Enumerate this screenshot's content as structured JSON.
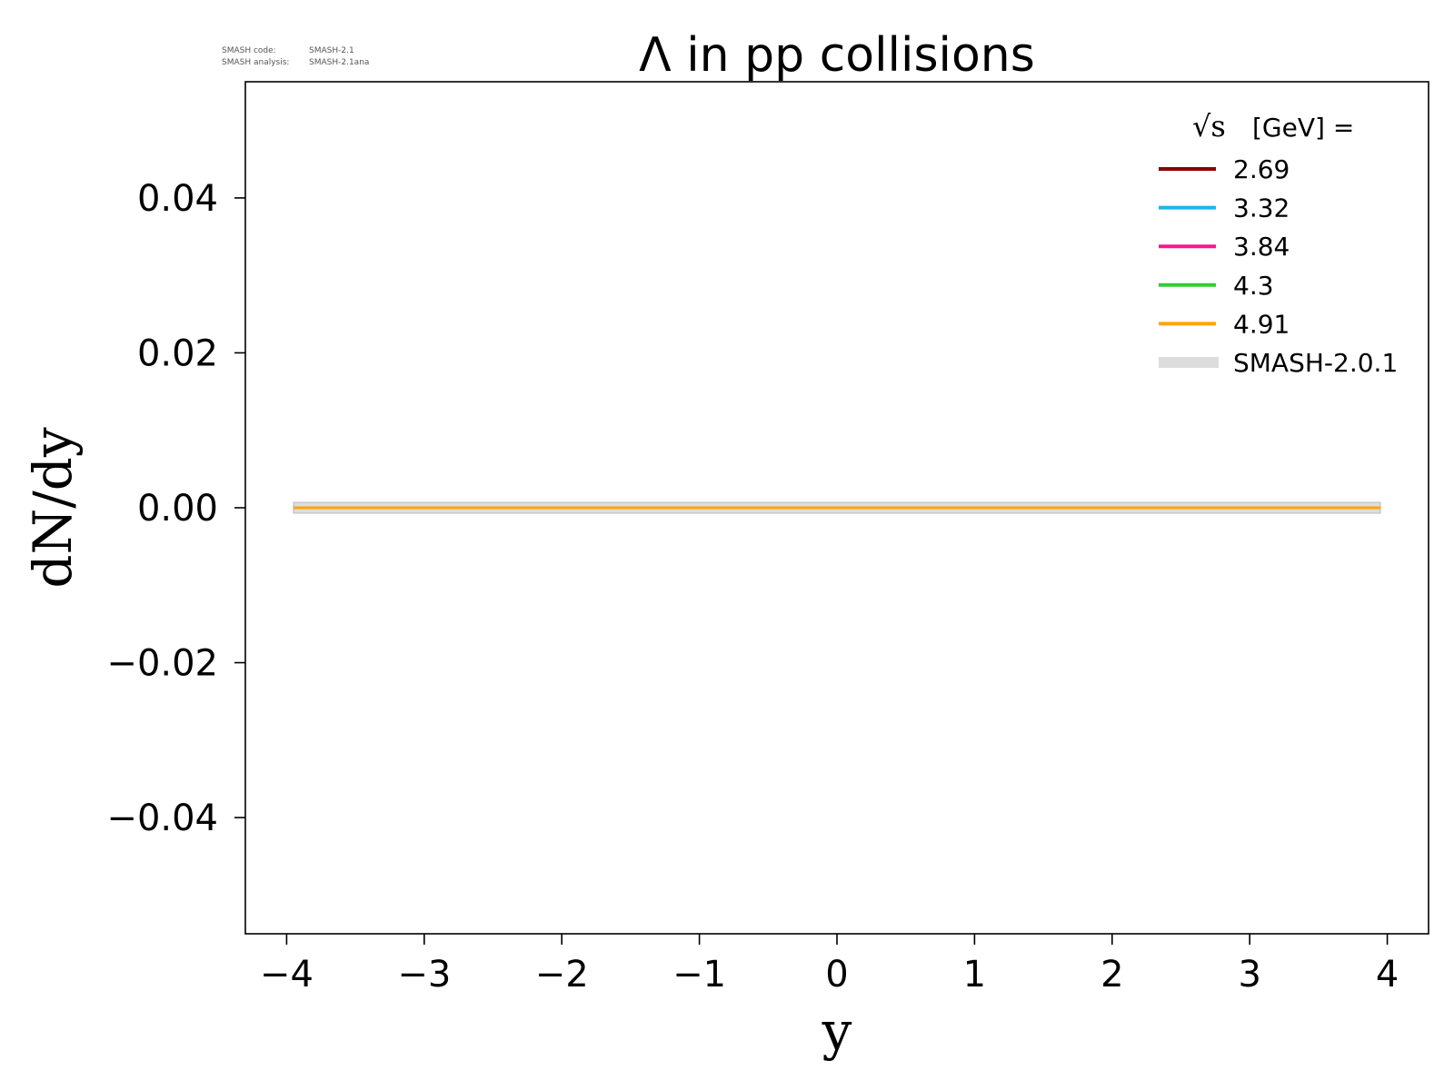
{
  "meta": {
    "code_label": "SMASH code:",
    "code_value": "SMASH-2.1",
    "analysis_label": "SMASH analysis:",
    "analysis_value": "SMASH-2.1ana"
  },
  "chart_data": {
    "type": "line",
    "title": "Λ in pp collisions",
    "xlabel": "y",
    "ylabel": "dN/dy",
    "xlim": [
      -4.3,
      4.3
    ],
    "ylim": [
      -0.055,
      0.055
    ],
    "xticks": [
      -4,
      -3,
      -2,
      -1,
      0,
      1,
      2,
      3,
      4
    ],
    "xtick_labels": [
      "−4",
      "−3",
      "−2",
      "−1",
      "0",
      "1",
      "2",
      "3",
      "4"
    ],
    "yticks": [
      -0.04,
      -0.02,
      0.0,
      0.02,
      0.04
    ],
    "ytick_labels": [
      "−0.04",
      "−0.02",
      "0.00",
      "0.02",
      "0.04"
    ],
    "grid": false,
    "legend": {
      "placement": "top-right",
      "title_symbol": "√s",
      "title_rest": "[GeV] ="
    },
    "x": [
      -3.95,
      3.95
    ],
    "series": [
      {
        "name": "SMASH-2.0.1",
        "color": "#dddddd",
        "style": "thick-band",
        "values": [
          0.0,
          0.0
        ]
      },
      {
        "name": "2.69",
        "color": "#8b0000",
        "style": "line",
        "values": [
          0.0,
          0.0
        ]
      },
      {
        "name": "3.32",
        "color": "#1eb4f0",
        "style": "line",
        "values": [
          0.0,
          0.0
        ]
      },
      {
        "name": "3.84",
        "color": "#ff1493",
        "style": "line",
        "values": [
          0.0,
          0.0
        ]
      },
      {
        "name": "4.3",
        "color": "#32cd32",
        "style": "line",
        "values": [
          0.0,
          0.0
        ]
      },
      {
        "name": "4.91",
        "color": "#ffa500",
        "style": "line",
        "values": [
          0.0,
          0.0
        ]
      }
    ],
    "legend_order": [
      1,
      2,
      3,
      4,
      5,
      0
    ]
  }
}
